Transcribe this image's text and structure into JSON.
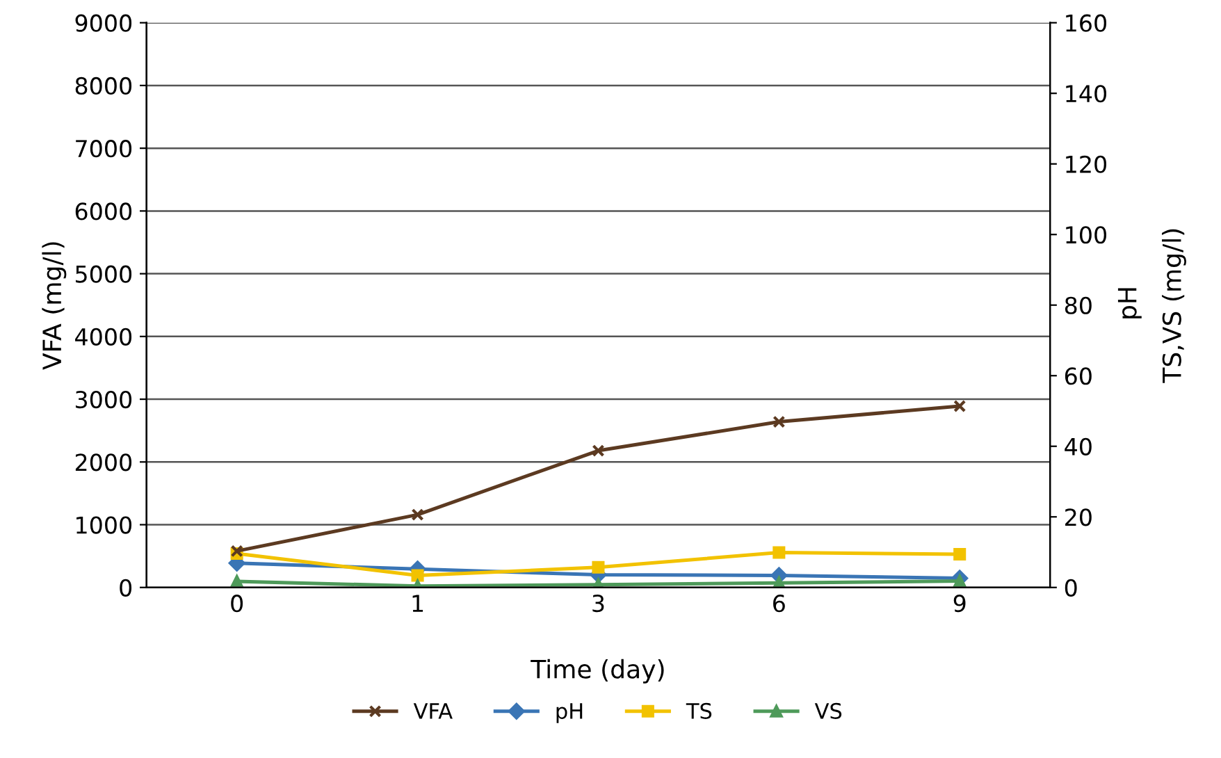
{
  "chart_data": {
    "type": "line",
    "categories": [
      "0",
      "1",
      "3",
      "6",
      "9"
    ],
    "xlabel": "Time (day)",
    "ylabel": "VFA (mg/l)",
    "y2label": "TS,VS (mg/l)",
    "annotations": [
      "pH"
    ],
    "ylim": [
      0,
      9000
    ],
    "yticks": [
      0,
      1000,
      2000,
      3000,
      4000,
      5000,
      6000,
      7000,
      8000,
      9000
    ],
    "y2lim": [
      0,
      160
    ],
    "y2ticks": [
      0,
      20,
      40,
      60,
      80,
      100,
      120,
      140,
      160
    ],
    "grid": "y",
    "legend": "bottom",
    "line_style": "solid",
    "series": [
      {
        "name": "VFA",
        "color": "#5c3a21",
        "marker": "cross",
        "values": [
          580,
          1160,
          2180,
          2640,
          2890
        ]
      },
      {
        "name": "pH",
        "color": "#3a75b5",
        "marker": "diamond",
        "axis": "y2",
        "values": [
          6.9,
          5.2,
          3.6,
          3.4,
          2.6
        ]
      },
      {
        "name": "TS",
        "color": "#f2c200",
        "marker": "square",
        "axis": "y2",
        "values": [
          9.6,
          3.4,
          5.7,
          9.9,
          9.4
        ]
      },
      {
        "name": "VS",
        "color": "#4e9a5a",
        "marker": "triangle",
        "axis": "y2",
        "values": [
          1.7,
          0.4,
          0.8,
          1.3,
          1.8
        ]
      }
    ]
  }
}
